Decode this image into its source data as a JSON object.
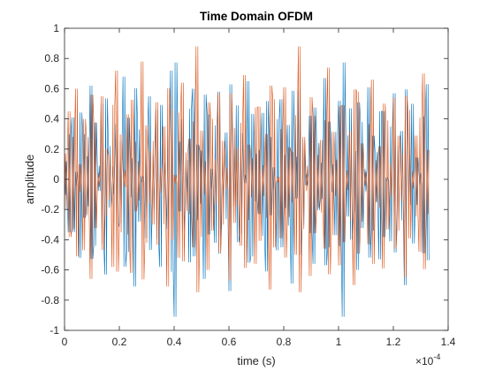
{
  "chart_data": {
    "type": "line",
    "title": "Time Domain OFDM",
    "xlabel": "time (s)",
    "ylabel": "amplitude",
    "x_exponent_label": "×10",
    "x_exponent_power": "-4",
    "xlim": [
      0,
      1.4
    ],
    "ylim": [
      -1,
      1
    ],
    "x_ticks": [
      0,
      0.2,
      0.4,
      0.6,
      0.8,
      1,
      1.2,
      1.4
    ],
    "x_tick_labels": [
      "0",
      "0.2",
      "0.4",
      "0.6",
      "0.8",
      "1",
      "1.2",
      "1.4"
    ],
    "y_ticks": [
      -1,
      -0.8,
      -0.6,
      -0.4,
      -0.2,
      0,
      0.2,
      0.4,
      0.6,
      0.8,
      1
    ],
    "y_tick_labels": [
      "-1",
      "-0.8",
      "-0.6",
      "-0.4",
      "-0.2",
      "0",
      "0.2",
      "0.4",
      "0.6",
      "0.8",
      "1"
    ],
    "grid": false,
    "box": true,
    "x_range_data": [
      0,
      1.33
    ],
    "series": [
      {
        "color": "#0072BD",
        "x_start": 0,
        "x_end": 1.33,
        "sample_count": 400,
        "values": [
          0.12,
          -0.35,
          0.41,
          0.05,
          -0.52,
          0.3,
          -0.18,
          0.62,
          -0.44,
          0.09,
          0.5,
          -0.63,
          0.22,
          -0.1,
          0.37,
          -0.29,
          0.68,
          -0.48,
          0.14,
          -0.71,
          0.33,
          0.02,
          -0.39,
          0.55,
          -0.2,
          0.46,
          -0.58,
          0.11,
          -0.33,
          0.72,
          -0.91,
          0.25,
          0.4,
          -0.15,
          -0.55,
          0.6,
          -0.27,
          0.19,
          -0.66,
          0.43,
          0.07,
          -0.42,
          0.58,
          -0.12,
          0.31,
          -0.74,
          0.21,
          0.49,
          -0.36,
          0.03,
          0.65,
          -0.51,
          0.17,
          -0.23,
          0.44,
          -0.61,
          0.28,
          0.08,
          -0.47,
          0.53,
          -0.19,
          0.36,
          -0.69,
          0.15,
          0.59,
          -0.31,
          -0.04,
          0.42,
          -0.56,
          0.24,
          -0.13,
          0.67,
          -0.45,
          0.1,
          -0.37,
          0.52,
          -0.91,
          0.29,
          0.47,
          -0.22,
          -0.6,
          0.38,
          -0.08,
          0.61,
          -0.34,
          0.18,
          -0.53,
          0.45,
          0.01,
          -0.41,
          0.57,
          -0.26,
          0.32,
          -0.7,
          0.2,
          0.5,
          -0.17,
          0.04,
          -0.49,
          0.63
        ],
        "value_repeat": 4
      },
      {
        "color": "#D95319",
        "x_start": 0,
        "x_end": 1.33,
        "sample_count": 400,
        "values": [
          -0.2,
          0.45,
          -0.33,
          0.6,
          0.1,
          -0.47,
          0.28,
          -0.66,
          0.38,
          -0.05,
          0.55,
          -0.24,
          0.16,
          -0.58,
          0.72,
          -0.35,
          0.06,
          0.43,
          -0.62,
          0.25,
          -0.14,
          0.78,
          -0.42,
          0.19,
          -0.3,
          0.51,
          -0.09,
          0.35,
          -0.71,
          0.47,
          0.03,
          -0.52,
          0.64,
          -0.21,
          0.27,
          -0.45,
          0.88,
          -0.38,
          0.12,
          -0.6,
          0.4,
          -0.16,
          0.57,
          -0.3,
          0.08,
          -0.67,
          0.34,
          0.21,
          -0.44,
          0.69,
          -0.27,
          0.14,
          -0.56,
          0.48,
          -0.11,
          0.3,
          -0.73,
          0.53,
          -0.02,
          -0.39,
          0.61,
          -0.25,
          0.18,
          -0.5,
          0.88,
          -0.33,
          0.09,
          -0.64,
          0.42,
          -0.19,
          0.26,
          -0.46,
          0.74,
          -0.37,
          0.13,
          -0.57,
          0.49,
          -0.07,
          0.32,
          -0.7,
          0.58,
          -0.28,
          0.05,
          -0.43,
          0.66,
          -0.15,
          0.22,
          -0.59,
          0.39,
          -0.12,
          0.54,
          -0.34,
          0.17,
          -0.65,
          0.46,
          -0.06,
          0.29,
          -0.48,
          0.7,
          -0.23
        ],
        "value_repeat": 4
      }
    ]
  }
}
